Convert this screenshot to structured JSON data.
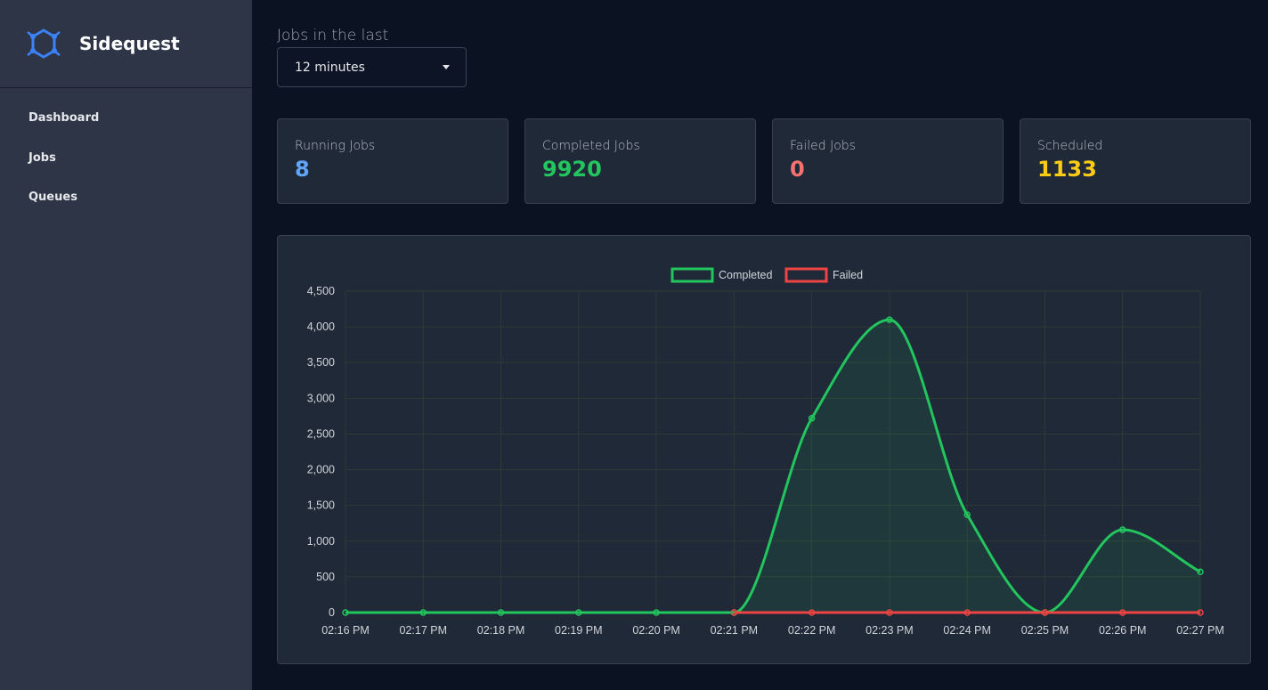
{
  "app": {
    "name": "Sidequest"
  },
  "sidebar": {
    "items": [
      {
        "label": "Dashboard"
      },
      {
        "label": "Jobs"
      },
      {
        "label": "Queues"
      }
    ]
  },
  "filter": {
    "label": "Jobs in the last",
    "selected": "12 minutes"
  },
  "stats": [
    {
      "label": "Running Jobs",
      "value": "8",
      "color": "#60a5fa"
    },
    {
      "label": "Completed Jobs",
      "value": "9920",
      "color": "#22c55e"
    },
    {
      "label": "Failed Jobs",
      "value": "0",
      "color": "#f87171"
    },
    {
      "label": "Scheduled",
      "value": "1133",
      "color": "#facc15"
    }
  ],
  "colors": {
    "completed": "#22c55e",
    "failed": "#ef4444",
    "grid": "#2f3a36",
    "tick": "#d1d5db"
  },
  "chart_data": {
    "type": "line",
    "categories": [
      "02:16 PM",
      "02:17 PM",
      "02:18 PM",
      "02:19 PM",
      "02:20 PM",
      "02:21 PM",
      "02:22 PM",
      "02:23 PM",
      "02:24 PM",
      "02:25 PM",
      "02:26 PM",
      "02:27 PM"
    ],
    "series": [
      {
        "name": "Completed",
        "values": [
          0,
          0,
          0,
          0,
          0,
          0,
          2720,
          4100,
          1370,
          0,
          1160,
          570
        ],
        "fill": true
      },
      {
        "name": "Failed",
        "values": [
          null,
          null,
          null,
          null,
          null,
          0,
          0,
          0,
          0,
          0,
          0,
          0
        ],
        "fill": false
      }
    ],
    "ylim": [
      0,
      4500
    ],
    "yticks": [
      0,
      500,
      1000,
      1500,
      2000,
      2500,
      3000,
      3500,
      4000,
      4500
    ],
    "ytick_labels": [
      "0",
      "500",
      "1,000",
      "1,500",
      "2,000",
      "2,500",
      "3,000",
      "3,500",
      "4,000",
      "4,500"
    ],
    "legend_position": "top-center",
    "grid": true
  }
}
